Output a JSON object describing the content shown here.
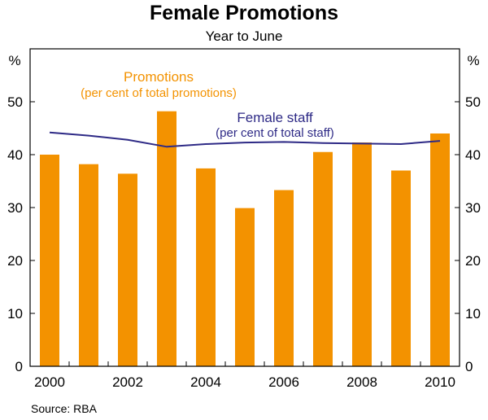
{
  "chart_data": {
    "type": "bar",
    "title": "Female Promotions",
    "subtitle": "Year to June",
    "left_axis_unit": "%",
    "right_axis_unit": "%",
    "ylim": [
      0,
      60
    ],
    "yticks": [
      0,
      10,
      20,
      30,
      40,
      50
    ],
    "categories": [
      "2000",
      "2001",
      "2002",
      "2003",
      "2004",
      "2005",
      "2006",
      "2007",
      "2008",
      "2009",
      "2010"
    ],
    "x_tick_labels": [
      "2000",
      "2002",
      "2004",
      "2006",
      "2008",
      "2010"
    ],
    "series": [
      {
        "name": "Promotions",
        "label_line2": "(per cent of total promotions)",
        "type": "bar",
        "color": "#f39200",
        "values": [
          40.0,
          38.2,
          36.4,
          48.2,
          37.4,
          29.9,
          33.3,
          40.5,
          42.3,
          37.0,
          44.0
        ]
      },
      {
        "name": "Female staff",
        "label_line2": "(per cent of total staff)",
        "type": "line",
        "color": "#2e2a86",
        "values": [
          44.2,
          43.6,
          42.8,
          41.5,
          42.0,
          42.3,
          42.4,
          42.2,
          42.1,
          42.0,
          42.6
        ]
      }
    ],
    "grid": false,
    "source": "Source: RBA"
  }
}
